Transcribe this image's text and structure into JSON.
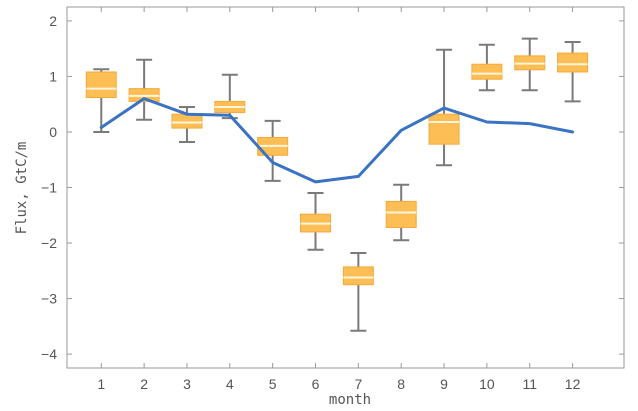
{
  "chart_data": {
    "type": "box",
    "title": "",
    "xlabel": "month",
    "ylabel": "Flux, GtC/m",
    "xlim": [
      0.2,
      13.2
    ],
    "ylim": [
      -4.25,
      2.25
    ],
    "x_ticks": [
      1,
      2,
      3,
      4,
      5,
      6,
      7,
      8,
      9,
      10,
      11,
      12
    ],
    "y_ticks": [
      -4,
      -3,
      -2,
      -1,
      0,
      1,
      2
    ],
    "grid": false,
    "colors": {
      "box_fill": "#FDBE55",
      "box_edge": "#F4A93A",
      "median": "#FFF6DC",
      "whisker": "#7A7A7A",
      "line": "#3A72C4",
      "frame": "#9A9A9A"
    },
    "boxes": [
      {
        "x": 1,
        "min": 0.0,
        "q1": 0.62,
        "median": 0.78,
        "q3": 1.08,
        "max": 1.13
      },
      {
        "x": 2,
        "min": 0.22,
        "q1": 0.55,
        "median": 0.65,
        "q3": 0.78,
        "max": 1.3
      },
      {
        "x": 3,
        "min": -0.18,
        "q1": 0.07,
        "median": 0.17,
        "q3": 0.32,
        "max": 0.45
      },
      {
        "x": 4,
        "min": 0.25,
        "q1": 0.35,
        "median": 0.45,
        "q3": 0.55,
        "max": 1.03
      },
      {
        "x": 5,
        "min": -0.88,
        "q1": -0.42,
        "median": -0.25,
        "q3": -0.1,
        "max": 0.2
      },
      {
        "x": 6,
        "min": -2.12,
        "q1": -1.8,
        "median": -1.65,
        "q3": -1.48,
        "max": -1.1
      },
      {
        "x": 7,
        "min": -3.58,
        "q1": -2.75,
        "median": -2.62,
        "q3": -2.43,
        "max": -2.18
      },
      {
        "x": 8,
        "min": -1.95,
        "q1": -1.72,
        "median": -1.45,
        "q3": -1.25,
        "max": -0.95
      },
      {
        "x": 9,
        "min": -0.6,
        "q1": -0.22,
        "median": 0.18,
        "q3": 0.32,
        "max": 1.48
      },
      {
        "x": 10,
        "min": 0.75,
        "q1": 0.95,
        "median": 1.05,
        "q3": 1.22,
        "max": 1.57
      },
      {
        "x": 11,
        "min": 0.75,
        "q1": 1.12,
        "median": 1.23,
        "q3": 1.37,
        "max": 1.68
      },
      {
        "x": 12,
        "min": 0.55,
        "q1": 1.08,
        "median": 1.22,
        "q3": 1.42,
        "max": 1.62
      }
    ],
    "line": {
      "x": [
        1,
        2,
        3,
        4,
        5,
        6,
        7,
        8,
        9,
        10,
        11,
        12
      ],
      "y": [
        0.08,
        0.6,
        0.32,
        0.3,
        -0.55,
        -0.9,
        -0.8,
        0.03,
        0.43,
        0.18,
        0.15,
        0.0
      ]
    }
  }
}
